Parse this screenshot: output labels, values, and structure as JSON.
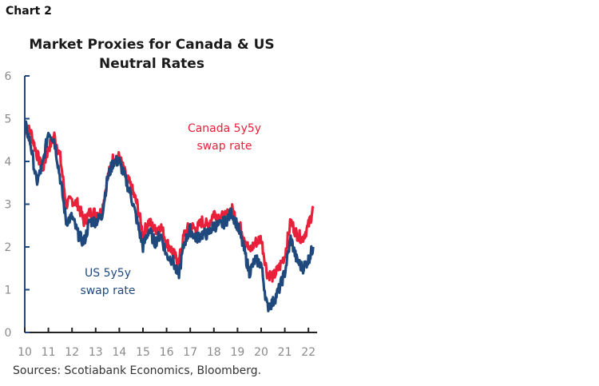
{
  "header": {
    "chart_label": "Chart 2"
  },
  "source_note": "Sources: Scotiabank Economics, Bloomberg.",
  "colors": {
    "canada": "#e8203a",
    "us": "#1f497d",
    "axis": "#1f497d",
    "tick_text": "#8a8a8a"
  },
  "chart_data": {
    "type": "line",
    "title": "Market Proxies for Canada & US Neutral Rates",
    "title_lines": [
      "Market Proxies for Canada & US",
      "Neutral Rates"
    ],
    "xlabel": "",
    "ylabel": "",
    "xlim": [
      2010,
      2022.3
    ],
    "ylim": [
      0,
      6
    ],
    "grid": false,
    "x_ticks": [
      2010,
      2011,
      2012,
      2013,
      2014,
      2015,
      2016,
      2017,
      2018,
      2019,
      2020,
      2021,
      2022
    ],
    "x_tick_labels": [
      "10",
      "11",
      "12",
      "13",
      "14",
      "15",
      "16",
      "17",
      "18",
      "19",
      "20",
      "21",
      "22"
    ],
    "y_ticks": [
      0,
      1,
      2,
      3,
      4,
      5,
      6
    ],
    "y_tick_labels": [
      "0",
      "1",
      "2",
      "3",
      "4",
      "5",
      "6"
    ],
    "x": [
      2010.0,
      2010.25,
      2010.5,
      2010.75,
      2011.0,
      2011.25,
      2011.5,
      2011.75,
      2012.0,
      2012.25,
      2012.5,
      2012.75,
      2013.0,
      2013.25,
      2013.5,
      2013.75,
      2014.0,
      2014.25,
      2014.5,
      2014.75,
      2015.0,
      2015.25,
      2015.5,
      2015.75,
      2016.0,
      2016.25,
      2016.5,
      2016.75,
      2017.0,
      2017.25,
      2017.5,
      2017.75,
      2018.0,
      2018.25,
      2018.5,
      2018.75,
      2019.0,
      2019.25,
      2019.5,
      2019.75,
      2020.0,
      2020.25,
      2020.5,
      2020.75,
      2021.0,
      2021.25,
      2021.5,
      2021.75,
      2022.0,
      2022.2
    ],
    "series": [
      {
        "name": "Canada 5y5y swap rate",
        "annotation": [
          "Canada 5y5y",
          "swap rate"
        ],
        "color": "#e8203a",
        "values": [
          4.8,
          4.7,
          4.2,
          3.8,
          4.3,
          4.6,
          4.1,
          3.0,
          3.1,
          3.0,
          2.6,
          2.8,
          2.8,
          2.8,
          3.6,
          4.1,
          4.1,
          3.7,
          3.4,
          3.0,
          2.3,
          2.6,
          2.4,
          2.5,
          2.1,
          1.9,
          1.6,
          2.3,
          2.5,
          2.4,
          2.6,
          2.5,
          2.8,
          2.7,
          2.7,
          2.9,
          2.6,
          2.3,
          1.9,
          2.1,
          2.2,
          1.4,
          1.3,
          1.5,
          1.8,
          2.6,
          2.3,
          2.2,
          2.5,
          2.9
        ]
      },
      {
        "name": "US 5y5y swap rate",
        "annotation": [
          "US 5y5y",
          "swap rate"
        ],
        "color": "#1f497d",
        "values": [
          4.9,
          4.4,
          3.5,
          3.9,
          4.7,
          4.5,
          3.6,
          2.6,
          2.7,
          2.3,
          2.1,
          2.6,
          2.6,
          2.7,
          3.6,
          4.0,
          4.0,
          3.6,
          3.2,
          2.6,
          2.0,
          2.4,
          2.1,
          2.3,
          1.8,
          1.7,
          1.3,
          2.1,
          2.4,
          2.2,
          2.3,
          2.3,
          2.5,
          2.5,
          2.6,
          2.8,
          2.5,
          2.0,
          1.4,
          1.7,
          1.6,
          0.6,
          0.7,
          1.0,
          1.4,
          2.2,
          1.7,
          1.5,
          1.7,
          2.0
        ]
      }
    ]
  }
}
